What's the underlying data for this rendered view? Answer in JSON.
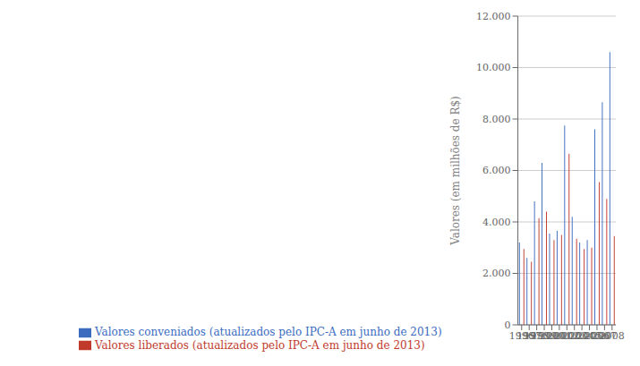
{
  "chart_data": {
    "type": "bar",
    "ylabel": "Valores (em milhões de R$)",
    "categories": [
      "1996",
      "1997",
      "1998",
      "1999",
      "2000",
      "2001",
      "2002",
      "2003",
      "2004",
      "2005",
      "2006",
      "2007",
      "2008"
    ],
    "series": [
      {
        "name": "Valores conveniados  (atualizados pelo IPC-A em junho de 2013)",
        "color": "#3a6bbf",
        "values": [
          3200,
          2600,
          4800,
          6300,
          3550,
          3650,
          7750,
          4200,
          3200,
          3300,
          7600,
          8650,
          10600
        ]
      },
      {
        "name": "Valores liberados (atualizados pelo IPC-A em junho de 2013)",
        "color": "#c0392b",
        "values": [
          2950,
          2450,
          4150,
          4400,
          3300,
          3500,
          6650,
          3350,
          2950,
          3000,
          5550,
          4900,
          3450
        ]
      }
    ],
    "ylim": [
      0,
      12000
    ],
    "yticks": [
      0,
      {
        "value": 2000,
        "label": "2.000"
      },
      {
        "value": 4000,
        "label": "4.000"
      },
      {
        "value": 6000,
        "label": "6.000"
      },
      {
        "value": 8000,
        "label": "8.000"
      },
      {
        "value": 10000,
        "label": "10.000"
      },
      {
        "value": 12000,
        "label": "12.000"
      }
    ],
    "grid": true,
    "legend": "lower left"
  }
}
